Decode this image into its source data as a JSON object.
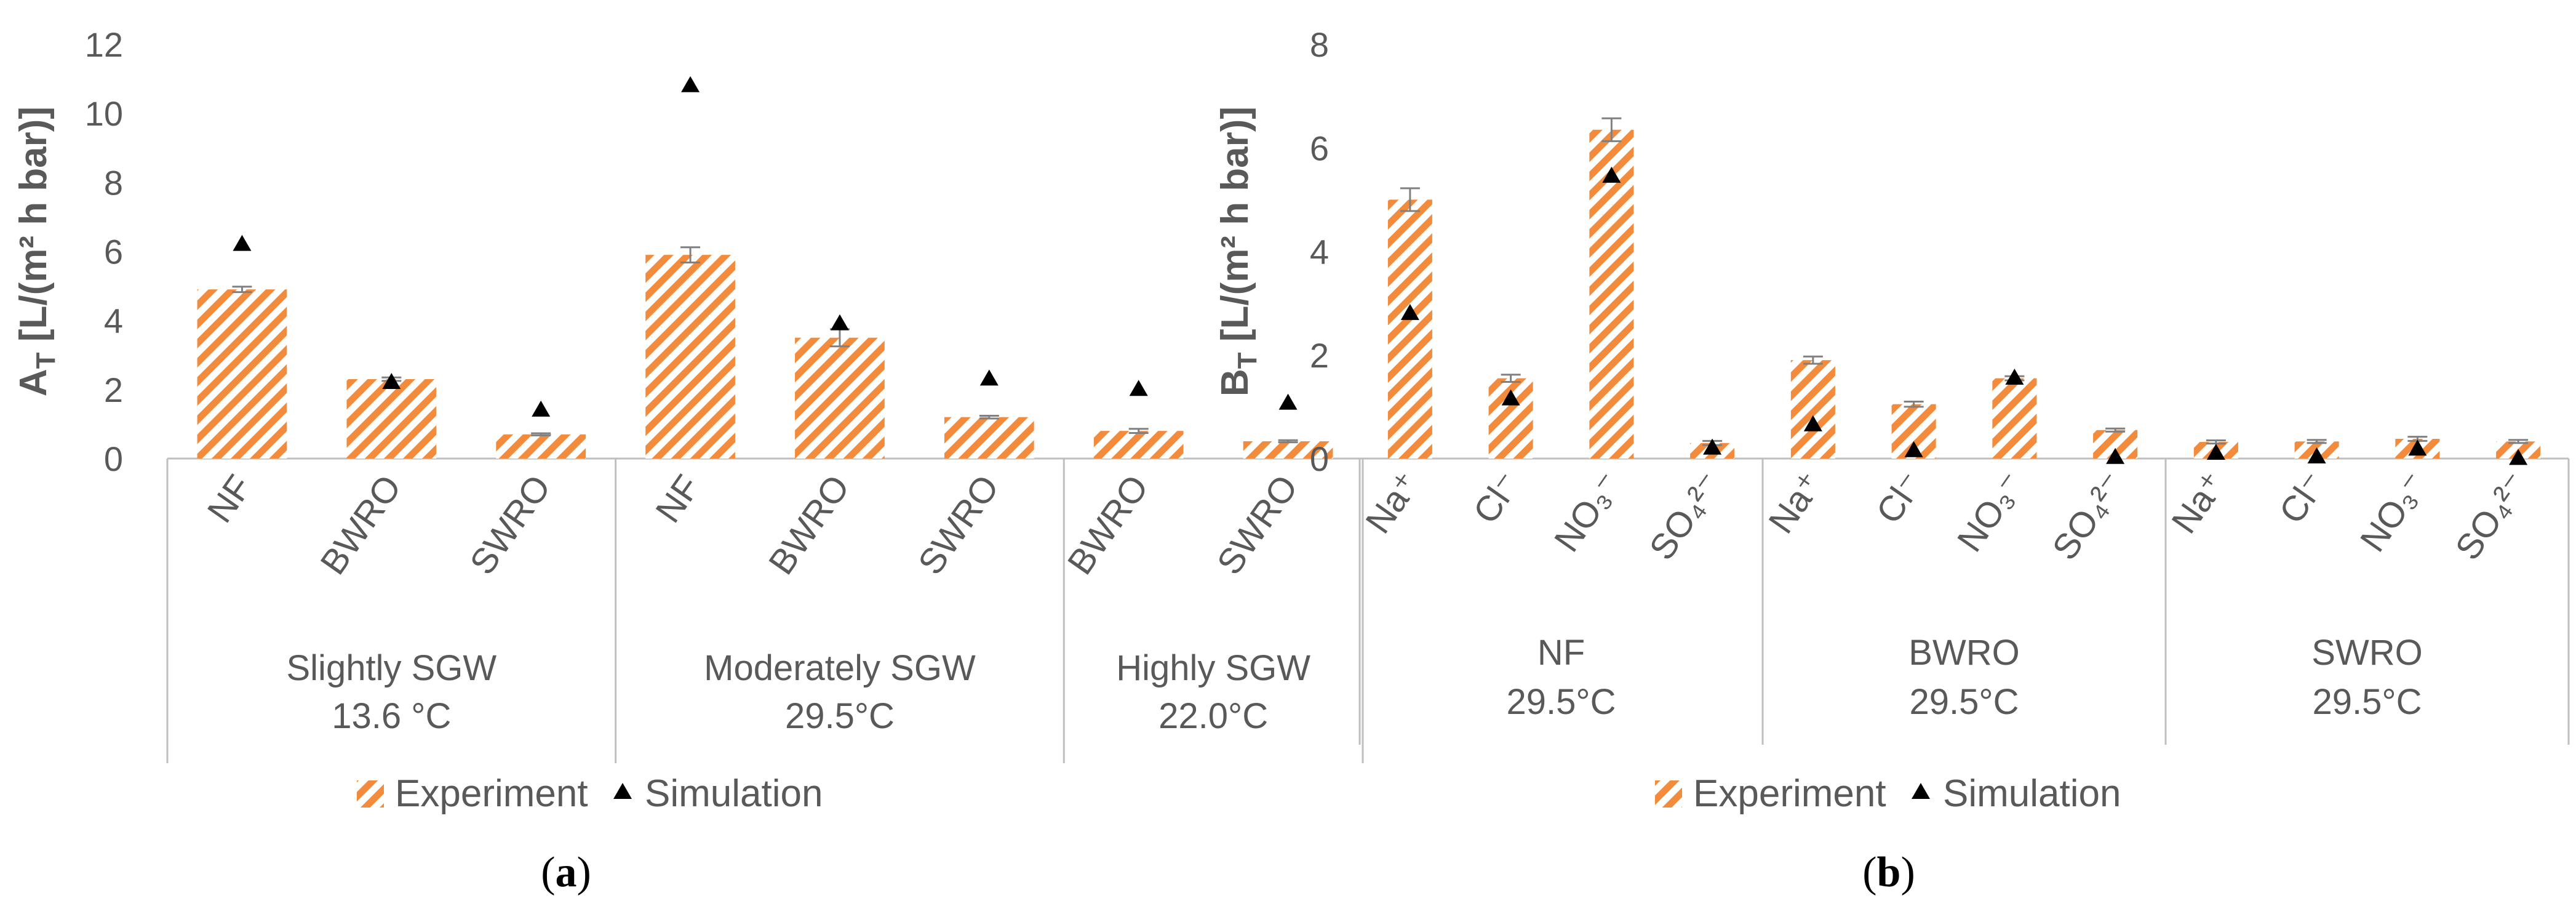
{
  "colors": {
    "bar": "#F28B3C",
    "marker": "#000000",
    "axis": "#BFBFBF",
    "text": "#595959",
    "errorbar": "#808080"
  },
  "legend": {
    "experiment": "Experiment",
    "simulation": "Simulation",
    "placement": "bottom-center"
  },
  "chart_data": [
    {
      "type": "bar",
      "panel_label": "(a)",
      "ylabel_main": "A",
      "ylabel_sub": "T",
      "ylabel_rest": " [L/(m² h bar)]",
      "ylim": [
        0,
        12
      ],
      "yticks": [
        "0",
        "2",
        "4",
        "6",
        "8",
        "10",
        "12"
      ],
      "groups": [
        {
          "label": [
            "Slightly SGW",
            "13.6 °C"
          ],
          "categories": [
            {
              "label": "NF",
              "experiment": 4.9,
              "error": 0.08,
              "simulation": 6.2
            },
            {
              "label": "BWRO",
              "experiment": 2.3,
              "error": 0.05,
              "simulation": 2.2
            },
            {
              "label": "SWRO",
              "experiment": 0.7,
              "error": 0.03,
              "simulation": 1.4
            }
          ]
        },
        {
          "label": [
            "Moderately SGW",
            "29.5°C"
          ],
          "categories": [
            {
              "label": "NF",
              "experiment": 5.9,
              "error": 0.22,
              "simulation": 10.8
            },
            {
              "label": "BWRO",
              "experiment": 3.5,
              "error": 0.25,
              "simulation": 3.9
            },
            {
              "label": "SWRO",
              "experiment": 1.2,
              "error": 0.04,
              "simulation": 2.3
            }
          ]
        },
        {
          "label": [
            "Highly SGW",
            "22.0°C"
          ],
          "categories": [
            {
              "label": "BWRO",
              "experiment": 0.8,
              "error": 0.06,
              "simulation": 2.0
            },
            {
              "label": "SWRO",
              "experiment": 0.5,
              "error": 0.03,
              "simulation": 1.6
            }
          ]
        }
      ]
    },
    {
      "type": "bar",
      "panel_label": "(b)",
      "ylabel_main": "B",
      "ylabel_sub": "T",
      "ylabel_rest": " [L/(m² h bar)]",
      "ylim": [
        0,
        8
      ],
      "yticks": [
        "0",
        "2",
        "4",
        "6",
        "8"
      ],
      "groups": [
        {
          "label": [
            "NF",
            "29.5°C"
          ],
          "categories": [
            {
              "label": "Na⁺",
              "experiment": 5.0,
              "error": 0.22,
              "simulation": 2.8
            },
            {
              "label": "Cl⁻",
              "experiment": 1.55,
              "error": 0.07,
              "simulation": 1.15
            },
            {
              "label": "NO₃⁻",
              "experiment": 6.35,
              "error": 0.22,
              "simulation": 5.45
            },
            {
              "label": "SO₄²⁻",
              "experiment": 0.3,
              "error": 0.04,
              "simulation": 0.2
            }
          ]
        },
        {
          "label": [
            "BWRO",
            "29.5°C"
          ],
          "categories": [
            {
              "label": "Na⁺",
              "experiment": 1.9,
              "error": 0.07,
              "simulation": 0.65
            },
            {
              "label": "Cl⁻",
              "experiment": 1.05,
              "error": 0.05,
              "simulation": 0.15
            },
            {
              "label": "NO₃⁻",
              "experiment": 1.55,
              "error": 0.04,
              "simulation": 1.55
            },
            {
              "label": "SO₄²⁻",
              "experiment": 0.55,
              "error": 0.03,
              "simulation": 0.02
            }
          ]
        },
        {
          "label": [
            "SWRO",
            "29.5°C"
          ],
          "categories": [
            {
              "label": "Na⁺",
              "experiment": 0.32,
              "error": 0.03,
              "simulation": 0.1
            },
            {
              "label": "Cl⁻",
              "experiment": 0.33,
              "error": 0.03,
              "simulation": 0.03
            },
            {
              "label": "NO₃⁻",
              "experiment": 0.38,
              "error": 0.04,
              "simulation": 0.18
            },
            {
              "label": "SO₄²⁻",
              "experiment": 0.33,
              "error": 0.03,
              "simulation": 0.0
            }
          ]
        }
      ]
    }
  ]
}
